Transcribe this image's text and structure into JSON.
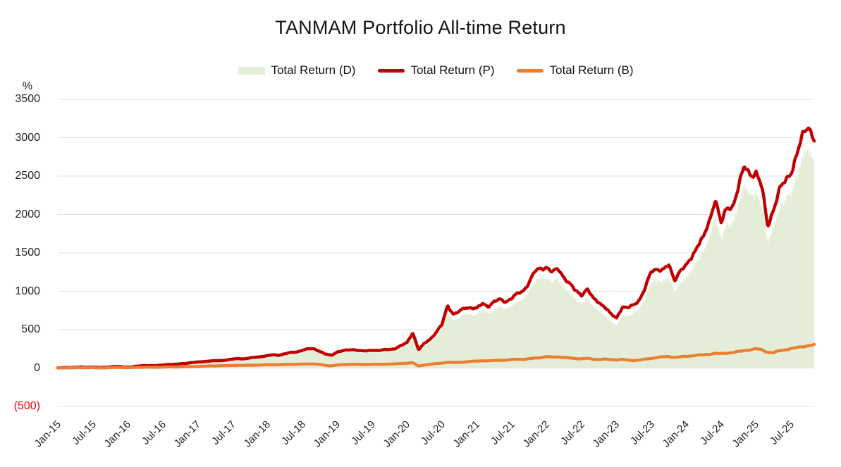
{
  "title": "TANMAM Portfolio All-time Return",
  "legend": [
    {
      "label": "Total Return (D)",
      "color": "#e4edd8",
      "marker": "area"
    },
    {
      "label": "Total Return (P)",
      "color": "#c00000",
      "marker": "line"
    },
    {
      "label": "Total Return (B)",
      "color": "#ed7d31",
      "marker": "line"
    }
  ],
  "y_axis": {
    "unit": "%",
    "ticks": [
      {
        "label": "3500",
        "value": 3500
      },
      {
        "label": "3000",
        "value": 3000
      },
      {
        "label": "2500",
        "value": 2500
      },
      {
        "label": "2000",
        "value": 2000
      },
      {
        "label": "1500",
        "value": 1500
      },
      {
        "label": "1000",
        "value": 1000
      },
      {
        "label": "500",
        "value": 500
      },
      {
        "label": "0",
        "value": 0
      },
      {
        "label": "(500)",
        "value": -500,
        "color": "#ff0000"
      }
    ],
    "negative_format": "parentheses-red"
  },
  "x_axis": {
    "interval_months": 6,
    "ticks": [
      "Jan-15",
      "Jul-15",
      "Jan-16",
      "Jul-16",
      "Jan-17",
      "Jul-17",
      "Jan-18",
      "Jul-18",
      "Jan-19",
      "Jul-19",
      "Jan-20",
      "Jul-20",
      "Jan-21",
      "Jul-21",
      "Jan-22",
      "Jul-22",
      "Jan-23",
      "Jul-23",
      "Jan-24",
      "Jul-24",
      "Jan-25",
      "Jul-25"
    ]
  },
  "chart_data": {
    "type": "line+area",
    "title": "TANMAM Portfolio All-time Return",
    "xlabel": "",
    "ylabel": "%",
    "ylim": [
      -500,
      3500
    ],
    "grid": "horizontal",
    "legend_position": "top",
    "months": [
      "Jan-15",
      "Feb-15",
      "Mar-15",
      "Apr-15",
      "May-15",
      "Jun-15",
      "Jul-15",
      "Aug-15",
      "Sep-15",
      "Oct-15",
      "Nov-15",
      "Dec-15",
      "Jan-16",
      "Feb-16",
      "Mar-16",
      "Apr-16",
      "May-16",
      "Jun-16",
      "Jul-16",
      "Aug-16",
      "Sep-16",
      "Oct-16",
      "Nov-16",
      "Dec-16",
      "Jan-17",
      "Feb-17",
      "Mar-17",
      "Apr-17",
      "May-17",
      "Jun-17",
      "Jul-17",
      "Aug-17",
      "Sep-17",
      "Oct-17",
      "Nov-17",
      "Dec-17",
      "Jan-18",
      "Feb-18",
      "Mar-18",
      "Apr-18",
      "May-18",
      "Jun-18",
      "Jul-18",
      "Aug-18",
      "Sep-18",
      "Oct-18",
      "Nov-18",
      "Dec-18",
      "Jan-19",
      "Feb-19",
      "Mar-19",
      "Apr-19",
      "May-19",
      "Jun-19",
      "Jul-19",
      "Aug-19",
      "Sep-19",
      "Oct-19",
      "Nov-19",
      "Dec-19",
      "Jan-20",
      "Feb-20",
      "Mar-20",
      "Apr-20",
      "May-20",
      "Jun-20",
      "Jul-20",
      "Aug-20",
      "Sep-20",
      "Oct-20",
      "Nov-20",
      "Dec-20",
      "Jan-21",
      "Feb-21",
      "Mar-21",
      "Apr-21",
      "May-21",
      "Jun-21",
      "Jul-21",
      "Aug-21",
      "Sep-21",
      "Oct-21",
      "Nov-21",
      "Dec-21",
      "Jan-22",
      "Feb-22",
      "Mar-22",
      "Apr-22",
      "May-22",
      "Jun-22",
      "Jul-22",
      "Aug-22",
      "Sep-22",
      "Oct-22",
      "Nov-22",
      "Dec-22",
      "Jan-23",
      "Feb-23",
      "Mar-23",
      "Apr-23",
      "May-23",
      "Jun-23",
      "Jul-23",
      "Aug-23",
      "Sep-23",
      "Oct-23",
      "Nov-23",
      "Dec-23",
      "Jan-24",
      "Feb-24",
      "Mar-24",
      "Apr-24",
      "May-24",
      "Jun-24",
      "Jul-24",
      "Aug-24",
      "Sep-24",
      "Oct-24",
      "Nov-24",
      "Dec-24",
      "Jan-25",
      "Feb-25",
      "Mar-25",
      "Apr-25",
      "May-25",
      "Jun-25",
      "Jul-25",
      "Aug-25",
      "Sep-25",
      "Oct-25",
      "Nov-25"
    ],
    "series": [
      {
        "name": "Total Return (D)",
        "style": "area",
        "color": "#e4edd8",
        "values": [
          0,
          3,
          5,
          7,
          9,
          7,
          10,
          3,
          7,
          12,
          15,
          11,
          8,
          13,
          20,
          27,
          25,
          23,
          32,
          40,
          38,
          46,
          52,
          60,
          67,
          73,
          78,
          82,
          85,
          91,
          100,
          109,
          105,
          114,
          125,
          132,
          142,
          153,
          149,
          165,
          179,
          188,
          209,
          224,
          228,
          198,
          158,
          148,
          185,
          198,
          208,
          212,
          198,
          193,
          206,
          200,
          206,
          212,
          224,
          255,
          295,
          420,
          205,
          280,
          335,
          410,
          505,
          745,
          630,
          655,
          710,
          710,
          690,
          755,
          725,
          770,
          800,
          780,
          820,
          865,
          910,
          1010,
          1130,
          1175,
          1195,
          1120,
          1165,
          1070,
          975,
          890,
          855,
          920,
          795,
          760,
          700,
          610,
          560,
          700,
          680,
          720,
          790,
          930,
          1110,
          1160,
          1140,
          1180,
          1010,
          1130,
          1170,
          1290,
          1450,
          1520,
          1700,
          2020,
          1700,
          1860,
          1910,
          2160,
          2360,
          2290,
          2320,
          2110,
          1650,
          1870,
          2070,
          2190,
          2320,
          2500,
          2740,
          2900,
          2700
        ]
      },
      {
        "name": "Total Return (P)",
        "style": "line",
        "color": "#c00000",
        "width": 4.4,
        "values": [
          0,
          5,
          8,
          10,
          12,
          10,
          14,
          6,
          10,
          16,
          20,
          15,
          12,
          18,
          26,
          34,
          32,
          30,
          40,
          48,
          46,
          55,
          62,
          70,
          78,
          85,
          90,
          95,
          98,
          105,
          115,
          125,
          120,
          130,
          142,
          150,
          160,
          172,
          168,
          185,
          200,
          210,
          232,
          248,
          252,
          220,
          180,
          165,
          210,
          225,
          235,
          240,
          225,
          220,
          235,
          228,
          235,
          242,
          255,
          290,
          330,
          465,
          235,
          320,
          380,
          460,
          560,
          820,
          700,
          730,
          790,
          790,
          770,
          840,
          810,
          860,
          890,
          870,
          910,
          960,
          1010,
          1120,
          1250,
          1300,
          1320,
          1240,
          1290,
          1190,
          1090,
          1000,
          960,
          1030,
          900,
          860,
          800,
          700,
          650,
          800,
          780,
          820,
          900,
          1050,
          1250,
          1300,
          1280,
          1330,
          1150,
          1280,
          1320,
          1450,
          1620,
          1700,
          1900,
          2230,
          1890,
          2060,
          2120,
          2380,
          2600,
          2530,
          2560,
          2340,
          1850,
          2080,
          2300,
          2430,
          2570,
          2760,
          3010,
          3190,
          2970
        ]
      },
      {
        "name": "Total Return (B)",
        "style": "line",
        "color": "#ed7d31",
        "width": 4.2,
        "values": [
          0,
          2,
          3,
          4,
          5,
          3,
          5,
          1,
          2,
          5,
          7,
          6,
          4,
          6,
          9,
          11,
          10,
          9,
          12,
          14,
          13,
          15,
          17,
          19,
          21,
          24,
          26,
          28,
          30,
          31,
          33,
          35,
          34,
          36,
          38,
          40,
          42,
          44,
          43,
          46,
          48,
          49,
          51,
          53,
          54,
          46,
          34,
          28,
          40,
          44,
          47,
          49,
          45,
          46,
          49,
          48,
          50,
          52,
          54,
          58,
          64,
          70,
          25,
          40,
          50,
          58,
          64,
          76,
          72,
          74,
          80,
          86,
          90,
          96,
          93,
          98,
          103,
          101,
          110,
          116,
          112,
          120,
          130,
          136,
          148,
          142,
          146,
          138,
          130,
          124,
          120,
          126,
          114,
          110,
          116,
          110,
          106,
          112,
          102,
          98,
          104,
          116,
          126,
          138,
          146,
          150,
          138,
          146,
          152,
          160,
          168,
          172,
          180,
          192,
          186,
          196,
          202,
          214,
          228,
          238,
          250,
          238,
          205,
          200,
          225,
          238,
          252,
          265,
          280,
          292,
          300
        ]
      }
    ]
  }
}
